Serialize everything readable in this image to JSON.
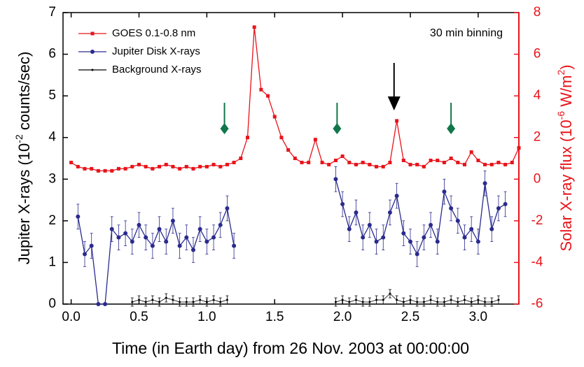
{
  "chart_data": {
    "type": "line",
    "xlabel": "Time (in Earth day) from 26 Nov. 2003 at 00:00:00",
    "ylabel": [
      "Jupiter X-rays (10",
      "-2",
      " counts/sec)"
    ],
    "y2label": [
      "Solar X-ray flux (10",
      "-6",
      " W/m",
      "2",
      ")"
    ],
    "annotation": "30 min binning",
    "xlim": [
      -0.06,
      3.3
    ],
    "xticks": [
      {
        "value": 0,
        "label": "0.0"
      },
      {
        "value": 0.5,
        "label": "0.5"
      },
      {
        "value": 1,
        "label": "1.0"
      },
      {
        "value": 1.5,
        "label": "1.5"
      },
      {
        "value": 2,
        "label": "2.0"
      },
      {
        "value": 2.5,
        "label": "2.5"
      },
      {
        "value": 3,
        "label": "3.0"
      }
    ],
    "ylim": [
      0,
      7
    ],
    "yticks": [
      0,
      1,
      2,
      3,
      4,
      5,
      6,
      7
    ],
    "y2lim": [
      -6,
      8
    ],
    "y2ticks": [
      -6,
      -4,
      -2,
      0,
      2,
      4,
      6,
      8
    ],
    "y2color": "#e8141b",
    "legend": "upper left",
    "series": [
      {
        "name": "GOES 0.1-0.8 nm",
        "color": "#e8141b",
        "axis": "y2",
        "marker": "square",
        "x": [
          0,
          0.05,
          0.1,
          0.15,
          0.2,
          0.25,
          0.3,
          0.35,
          0.4,
          0.45,
          0.5,
          0.55,
          0.6,
          0.65,
          0.7,
          0.75,
          0.8,
          0.85,
          0.9,
          0.95,
          1.0,
          1.05,
          1.1,
          1.15,
          1.2,
          1.25,
          1.3,
          1.35,
          1.4,
          1.45,
          1.5,
          1.55,
          1.6,
          1.65,
          1.7,
          1.75,
          1.8,
          1.85,
          1.9,
          1.95,
          2.0,
          2.05,
          2.1,
          2.15,
          2.2,
          2.25,
          2.3,
          2.35,
          2.4,
          2.45,
          2.5,
          2.55,
          2.6,
          2.65,
          2.7,
          2.75,
          2.8,
          2.85,
          2.9,
          2.95,
          3.0,
          3.05,
          3.1,
          3.15,
          3.2,
          3.25,
          3.3
        ],
        "values": [
          0.8,
          0.6,
          0.5,
          0.5,
          0.4,
          0.4,
          0.4,
          0.5,
          0.5,
          0.6,
          0.7,
          0.6,
          0.5,
          0.6,
          0.7,
          0.6,
          0.5,
          0.6,
          0.5,
          0.6,
          0.6,
          0.7,
          0.6,
          0.7,
          0.8,
          1.0,
          2.0,
          7.3,
          4.3,
          4.0,
          3.0,
          2.0,
          1.4,
          1.0,
          0.8,
          0.8,
          1.9,
          0.8,
          0.7,
          0.9,
          1.1,
          0.8,
          0.7,
          0.8,
          0.7,
          0.6,
          0.6,
          0.8,
          2.8,
          0.9,
          0.7,
          0.7,
          0.6,
          0.9,
          0.9,
          0.8,
          1.0,
          0.8,
          0.7,
          1.3,
          0.9,
          0.7,
          0.7,
          0.8,
          0.7,
          0.8,
          1.5
        ]
      },
      {
        "name": "Jupiter Disk X-rays",
        "color": "#2a2a8e",
        "marker": "circle",
        "x": [
          0.05,
          0.1,
          0.15,
          0.2,
          0.25,
          0.3,
          0.35,
          0.4,
          0.45,
          0.5,
          0.55,
          0.6,
          0.65,
          0.7,
          0.75,
          0.8,
          0.85,
          0.9,
          0.95,
          1.0,
          1.05,
          1.1,
          1.15,
          1.2,
          1.5,
          1.95,
          2.0,
          2.05,
          2.1,
          2.15,
          2.2,
          2.25,
          2.3,
          2.35,
          2.4,
          2.45,
          2.5,
          2.55,
          2.6,
          2.65,
          2.7,
          2.75,
          2.8,
          2.85,
          2.9,
          2.95,
          3.0,
          3.05,
          3.1,
          3.15,
          3.2
        ],
        "values": [
          2.1,
          1.2,
          1.4,
          0,
          0,
          1.8,
          1.6,
          1.7,
          1.5,
          1.9,
          1.6,
          1.4,
          1.8,
          1.5,
          2.0,
          1.4,
          1.6,
          1.3,
          1.8,
          1.5,
          1.6,
          1.9,
          2.3,
          1.4,
          null,
          3.0,
          2.4,
          1.8,
          2.2,
          1.6,
          1.9,
          1.5,
          1.6,
          2.2,
          2.6,
          1.7,
          1.5,
          1.2,
          1.6,
          1.9,
          1.5,
          2.7,
          2.3,
          2.0,
          1.6,
          1.8,
          1.5,
          2.9,
          1.8,
          2.3,
          2.4
        ],
        "errors": [
          0.3,
          0.3,
          0.3,
          0,
          0,
          0.3,
          0.3,
          0.3,
          0.3,
          0.3,
          0.3,
          0.3,
          0.3,
          0.3,
          0.3,
          0.3,
          0.3,
          0.3,
          0.3,
          0.3,
          0.3,
          0.3,
          0.3,
          0.3,
          null,
          0.3,
          0.3,
          0.3,
          0.3,
          0.3,
          0.3,
          0.3,
          0.3,
          0.3,
          0.3,
          0.3,
          0.3,
          0.3,
          0.3,
          0.3,
          0.3,
          0.3,
          0.3,
          0.3,
          0.3,
          0.3,
          0.3,
          0.3,
          0.3,
          0.3,
          0.3
        ]
      },
      {
        "name": "Background X-rays",
        "color": "#000000",
        "marker": "dot",
        "x": [
          0.45,
          0.5,
          0.55,
          0.6,
          0.65,
          0.7,
          0.75,
          0.8,
          0.85,
          0.9,
          0.95,
          1.0,
          1.05,
          1.1,
          1.15,
          1.5,
          1.95,
          2.0,
          2.05,
          2.1,
          2.15,
          2.2,
          2.25,
          2.3,
          2.35,
          2.4,
          2.45,
          2.5,
          2.55,
          2.6,
          2.65,
          2.7,
          2.75,
          2.8,
          2.85,
          2.9,
          2.95,
          3.0,
          3.05,
          3.1,
          3.15
        ],
        "values": [
          0.05,
          0.1,
          0.05,
          0.1,
          0.05,
          0.15,
          0.1,
          0.05,
          0.05,
          0.05,
          0.1,
          0.05,
          0.1,
          0.05,
          0.1,
          null,
          0.05,
          0.1,
          0.05,
          0.1,
          0.05,
          0.05,
          0.1,
          0.1,
          0.25,
          0.1,
          0.05,
          0.1,
          0.05,
          0.05,
          0.1,
          0.05,
          0.05,
          0.1,
          0.05,
          0.1,
          0.05,
          0.1,
          0.05,
          0.05,
          0.1
        ],
        "errors": [
          0.1,
          0.1,
          0.1,
          0.1,
          0.1,
          0.1,
          0.1,
          0.1,
          0.1,
          0.1,
          0.1,
          0.1,
          0.1,
          0.1,
          0.1,
          null,
          0.1,
          0.1,
          0.1,
          0.1,
          0.1,
          0.1,
          0.1,
          0.1,
          0.1,
          0.1,
          0.1,
          0.1,
          0.1,
          0.1,
          0.1,
          0.1,
          0.1,
          0.1,
          0.1,
          0.1,
          0.1,
          0.1,
          0.1,
          0.1,
          0.1
        ]
      }
    ],
    "markers_x": [
      1.13,
      1.96,
      2.8
    ],
    "markers_color": "#11774a",
    "arrow_x": 2.38
  }
}
